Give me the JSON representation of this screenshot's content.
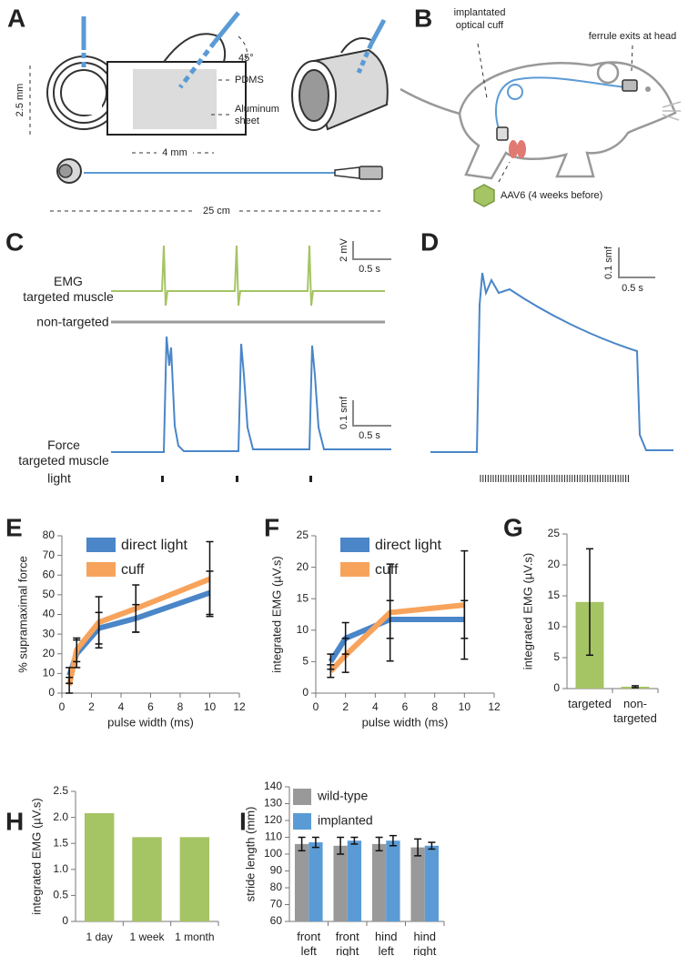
{
  "figure": {
    "panel_labels": [
      "A",
      "B",
      "C",
      "D",
      "E",
      "F",
      "G",
      "H",
      "I"
    ],
    "A": {
      "height": "2.5 mm",
      "angle": "45°",
      "pdms": "PDMS",
      "aluminum": [
        "Aluminum",
        "sheet"
      ],
      "width": "4 mm",
      "length": "25 cm"
    },
    "B": {
      "cuff": [
        "implantated",
        "optical cuff"
      ],
      "ferrule": "ferrule exits at head",
      "virus": "AAV6 (4 weeks before)"
    },
    "C": {
      "emg": [
        "EMG",
        "targeted muscle"
      ],
      "non_targeted": "non-targeted",
      "force": [
        "Force",
        "targeted muscle"
      ],
      "light": "light",
      "emg_scale_y": "2 mV",
      "emg_scale_x": "0.5 s",
      "force_scale_y": "0.1 smf",
      "force_scale_x": "0.5 s"
    },
    "D": {
      "scale_y": "0.1 smf",
      "scale_x": "0.5 s"
    }
  },
  "chart_data": [
    {
      "type": "line",
      "xlabel": "pulse width (ms)",
      "ylabel": "% supramaximal force",
      "x": [
        0.5,
        1,
        2.5,
        5,
        10
      ],
      "xlim": [
        0,
        12
      ],
      "xticks": [
        0,
        2,
        4,
        6,
        8,
        10,
        12
      ],
      "ylim": [
        0,
        80
      ],
      "yticks": [
        0,
        10,
        20,
        30,
        40,
        50,
        60,
        70,
        80
      ],
      "legend": "upper left",
      "series": [
        {
          "name": "direct light",
          "color": "#4a86c8",
          "values": [
            9,
            20,
            33,
            38,
            51
          ],
          "errors": [
            4,
            7,
            8,
            7,
            11
          ]
        },
        {
          "name": "cuff",
          "color": "#f7a35c",
          "values": [
            4,
            22,
            36,
            43,
            58
          ],
          "errors": [
            4,
            6,
            13,
            12,
            19
          ]
        }
      ]
    },
    {
      "type": "line",
      "xlabel": "pulse width (ms)",
      "ylabel": "integrated EMG (µV.s)",
      "x": [
        1,
        2,
        5,
        10
      ],
      "xlim": [
        0,
        12
      ],
      "xticks": [
        0,
        2,
        4,
        6,
        8,
        10,
        12
      ],
      "ylim": [
        0,
        25
      ],
      "yticks": [
        0,
        5,
        10,
        15,
        20,
        25
      ],
      "legend": "upper left",
      "series": [
        {
          "name": "direct light",
          "color": "#4a86c8",
          "values": [
            5,
            8.7,
            11.7,
            11.7
          ],
          "errors": [
            1.2,
            2.5,
            3,
            3
          ]
        },
        {
          "name": "cuff",
          "color": "#f7a35c",
          "values": [
            3.5,
            6,
            12.8,
            14
          ],
          "errors": [
            1,
            2.7,
            7.7,
            8.6
          ]
        }
      ]
    },
    {
      "type": "bar",
      "ylabel": "integrated EMG (µV.s)",
      "categories": [
        [
          "targeted"
        ],
        [
          "non-",
          "targeted"
        ]
      ],
      "values": [
        14,
        0.3
      ],
      "errors": [
        8.6,
        0.15
      ],
      "color": "#a5c464",
      "ylim": [
        0,
        25
      ],
      "yticks": [
        0,
        5,
        10,
        15,
        20,
        25
      ]
    },
    {
      "type": "bar",
      "ylabel": "integrated EMG (µV.s)",
      "categories": [
        "1 day",
        "1 week",
        "1 month"
      ],
      "values": [
        2.08,
        1.62,
        1.62
      ],
      "color": "#a5c464",
      "ylim": [
        0,
        2.5
      ],
      "yticks": [
        0,
        0.5,
        {
          "value": 1,
          "label": "1.0"
        },
        1.5,
        {
          "value": 2,
          "label": "2.0"
        },
        2.5
      ]
    },
    {
      "type": "bar",
      "ylabel": "stride length (mm)",
      "categories": [
        [
          "front",
          "left"
        ],
        [
          "front",
          "right"
        ],
        [
          "hind",
          "left"
        ],
        [
          "hind",
          "right"
        ]
      ],
      "ylim": [
        60,
        140
      ],
      "yticks": [
        60,
        70,
        80,
        90,
        100,
        110,
        120,
        130,
        140
      ],
      "legend": "upper left",
      "series": [
        {
          "name": "wild-type",
          "color": "#999999",
          "values": [
            106,
            105,
            106,
            104
          ],
          "errors": [
            4,
            5,
            4,
            5
          ]
        },
        {
          "name": "implanted",
          "color": "#5b9bd5",
          "values": [
            107,
            108,
            108,
            105
          ],
          "errors": [
            3,
            2,
            3,
            2
          ]
        }
      ]
    }
  ]
}
